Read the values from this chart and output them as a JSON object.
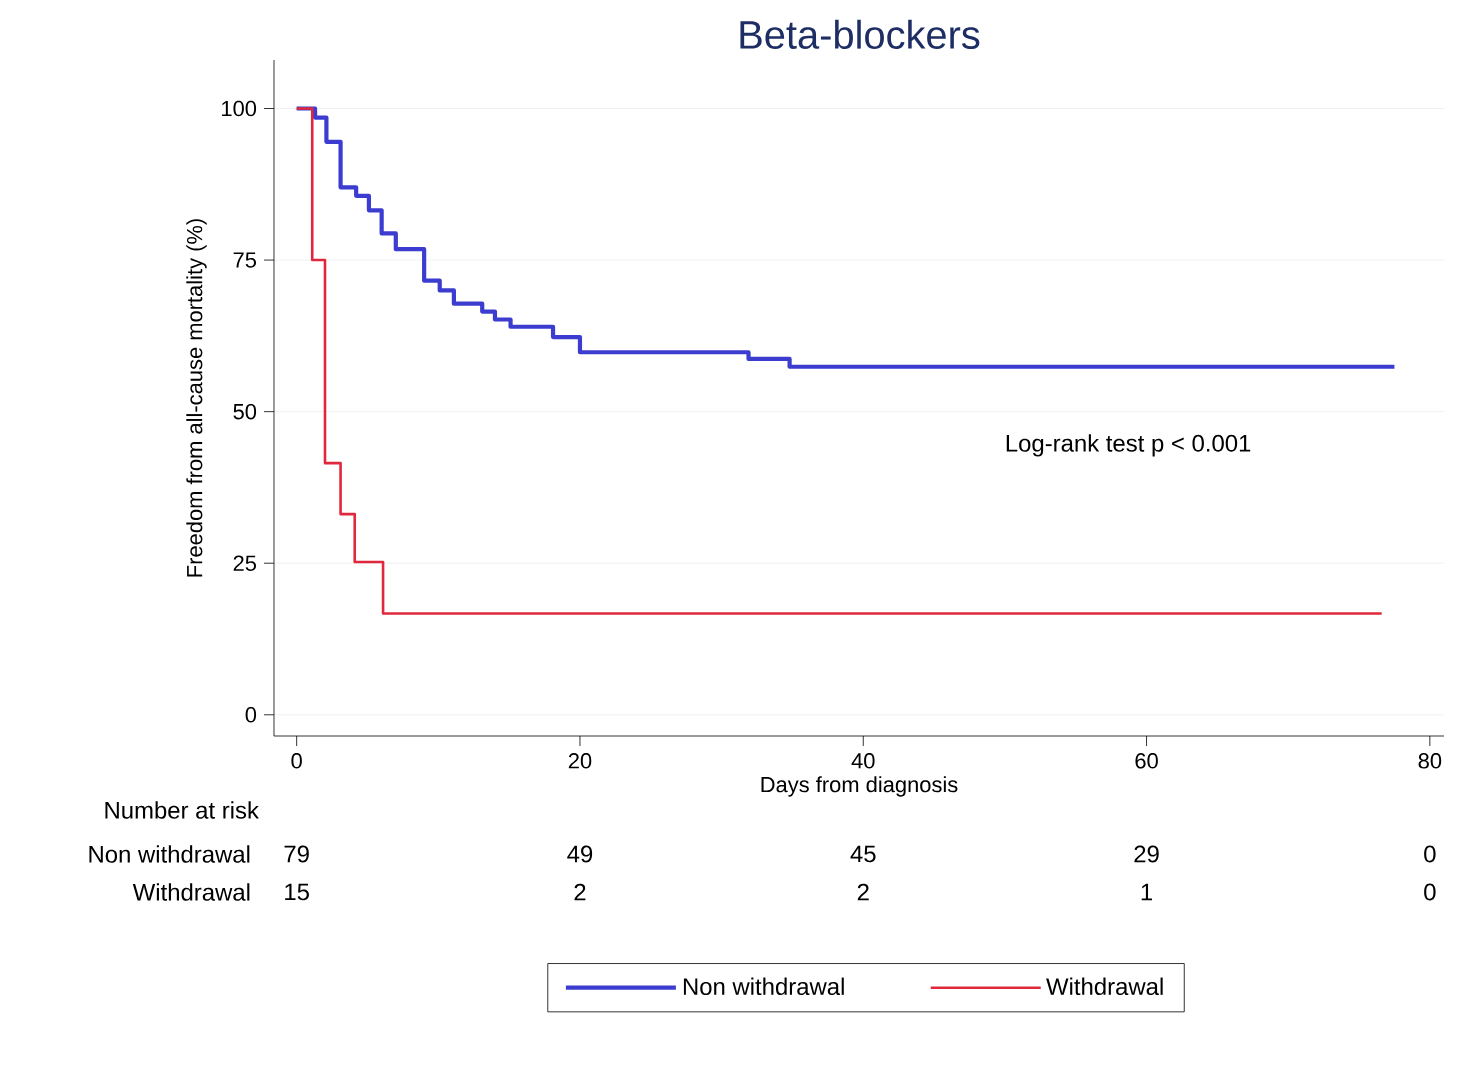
{
  "chart_data": {
    "type": "step",
    "title": "Beta-blockers",
    "xlabel": "Days from diagnosis",
    "ylabel": "Freedom from all-cause mortality (%)",
    "xlim": [
      -1.6,
      81
    ],
    "ylim": [
      -3.5,
      108
    ],
    "xticks": [
      0,
      20,
      40,
      60,
      80
    ],
    "yticks": [
      0,
      25,
      50,
      75,
      100
    ],
    "grid": "y",
    "legend": "bottom",
    "series": [
      {
        "name": "Non withdrawal",
        "color": "#3c3cd0",
        "x": [
          0,
          1.3,
          2.1,
          3.1,
          4.2,
          5.1,
          6,
          7,
          9,
          10.1,
          11.1,
          13.1,
          14,
          15.1,
          18.1,
          20,
          31.9,
          34.8,
          77.5
        ],
        "values": [
          100,
          98.5,
          94.5,
          87,
          85.6,
          83.2,
          79.4,
          76.8,
          71.6,
          70,
          67.8,
          66.5,
          65.2,
          64,
          62.3,
          59.8,
          58.7,
          57.4,
          57.4
        ]
      },
      {
        "name": "Withdrawal",
        "color": "#e0283c",
        "x": [
          0,
          1.1,
          2,
          3.1,
          4.1,
          6.1,
          76.6
        ],
        "values": [
          100,
          75,
          41.5,
          33.1,
          25.2,
          16.7,
          16.7
        ]
      }
    ],
    "annotations": [
      "Log-rank test p < 0.001",
      "Number at risk",
      "Non withdrawal",
      "79",
      "49",
      "45",
      "29",
      "0",
      "Withdrawal",
      "15",
      "2",
      "2",
      "1",
      "0"
    ]
  }
}
